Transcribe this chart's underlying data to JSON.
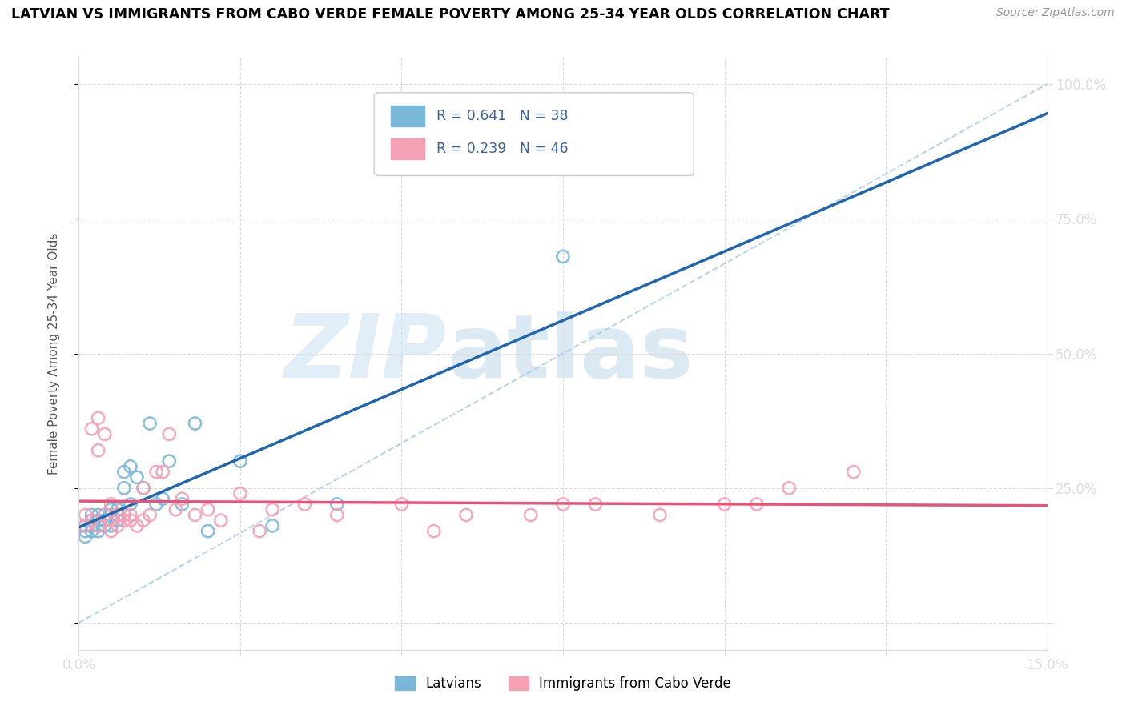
{
  "title": "LATVIAN VS IMMIGRANTS FROM CABO VERDE FEMALE POVERTY AMONG 25-34 YEAR OLDS CORRELATION CHART",
  "source": "Source: ZipAtlas.com",
  "ylabel": "Female Poverty Among 25-34 Year Olds",
  "xlim": [
    0.0,
    0.15
  ],
  "ylim": [
    -0.05,
    1.05
  ],
  "latvian_color": "#7ab8d9",
  "cabo_verde_color": "#f4a0b5",
  "latvian_line_color": "#2166ac",
  "cabo_verde_line_color": "#e8537a",
  "ref_line_color": "#aac9e0",
  "grid_color": "#dddddd",
  "latvian_x": [
    0.001,
    0.001,
    0.001,
    0.002,
    0.002,
    0.002,
    0.002,
    0.003,
    0.003,
    0.003,
    0.003,
    0.004,
    0.004,
    0.004,
    0.005,
    0.005,
    0.005,
    0.005,
    0.006,
    0.006,
    0.006,
    0.007,
    0.007,
    0.008,
    0.008,
    0.009,
    0.01,
    0.011,
    0.012,
    0.013,
    0.014,
    0.016,
    0.018,
    0.02,
    0.025,
    0.03,
    0.04,
    0.075
  ],
  "latvian_y": [
    0.18,
    0.17,
    0.16,
    0.19,
    0.18,
    0.17,
    0.2,
    0.19,
    0.18,
    0.17,
    0.2,
    0.19,
    0.18,
    0.2,
    0.21,
    0.19,
    0.18,
    0.2,
    0.21,
    0.2,
    0.19,
    0.28,
    0.25,
    0.29,
    0.22,
    0.27,
    0.25,
    0.37,
    0.22,
    0.23,
    0.3,
    0.22,
    0.37,
    0.17,
    0.3,
    0.18,
    0.22,
    0.68
  ],
  "cabo_verde_x": [
    0.001,
    0.001,
    0.002,
    0.002,
    0.003,
    0.003,
    0.003,
    0.004,
    0.004,
    0.005,
    0.005,
    0.005,
    0.006,
    0.006,
    0.007,
    0.007,
    0.008,
    0.008,
    0.009,
    0.01,
    0.01,
    0.011,
    0.012,
    0.013,
    0.014,
    0.015,
    0.016,
    0.018,
    0.02,
    0.022,
    0.025,
    0.028,
    0.03,
    0.035,
    0.04,
    0.05,
    0.055,
    0.06,
    0.07,
    0.075,
    0.08,
    0.09,
    0.1,
    0.105,
    0.11,
    0.12
  ],
  "cabo_verde_y": [
    0.2,
    0.18,
    0.36,
    0.19,
    0.38,
    0.18,
    0.32,
    0.2,
    0.35,
    0.19,
    0.22,
    0.17,
    0.2,
    0.18,
    0.2,
    0.19,
    0.2,
    0.19,
    0.18,
    0.25,
    0.19,
    0.2,
    0.28,
    0.28,
    0.35,
    0.21,
    0.23,
    0.2,
    0.21,
    0.19,
    0.24,
    0.17,
    0.21,
    0.22,
    0.2,
    0.22,
    0.17,
    0.2,
    0.2,
    0.22,
    0.22,
    0.2,
    0.22,
    0.22,
    0.25,
    0.28
  ]
}
